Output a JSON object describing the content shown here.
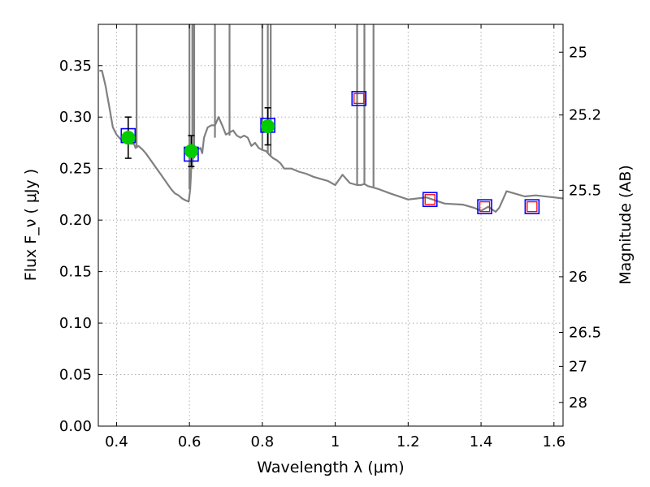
{
  "chart_data": {
    "type": "scatter",
    "xlabel": "Wavelength  λ (μm)",
    "ylabel": "Flux  F_ν  ( μJy )",
    "y2label": "Magnitude (AB)",
    "xlim": [
      0.35,
      1.625
    ],
    "ylim": [
      0.0,
      0.39
    ],
    "grid": true,
    "x_ticks": [
      0.4,
      0.6,
      0.8,
      1.0,
      1.2,
      1.4,
      1.6
    ],
    "x_tick_labels": [
      "0.4",
      "0.6",
      "0.8",
      "1",
      "1.2",
      "1.4",
      "1.6"
    ],
    "y_ticks": [
      0.0,
      0.05,
      0.1,
      0.15,
      0.2,
      0.25,
      0.3,
      0.35
    ],
    "y_tick_labels": [
      "0.00",
      "0.05",
      "0.10",
      "0.15",
      "0.20",
      "0.25",
      "0.30",
      "0.35"
    ],
    "y2_ticks": [
      {
        "label": "25",
        "flux": 0.363
      },
      {
        "label": "25.2",
        "flux": 0.302
      },
      {
        "label": "25.5",
        "flux": 0.229
      },
      {
        "label": "26",
        "flux": 0.145
      },
      {
        "label": "26.5",
        "flux": 0.091
      },
      {
        "label": "27",
        "flux": 0.058
      },
      {
        "label": "28",
        "flux": 0.023
      }
    ],
    "colors": {
      "model": "#808080",
      "observed": "#00cc00",
      "errorbar": "#000000",
      "model_band_box": "#0000ff",
      "fit_band_box": "#ff0000",
      "grid": "#b0b0b0"
    },
    "series": [
      {
        "marker": "line",
        "x": [
          0.353,
          0.36,
          0.37,
          0.375,
          0.38,
          0.385,
          0.39,
          0.4,
          0.41,
          0.42,
          0.43,
          0.44,
          0.448,
          0.452,
          0.46,
          0.47,
          0.48,
          0.49,
          0.5,
          0.51,
          0.52,
          0.53,
          0.54,
          0.55,
          0.56,
          0.57,
          0.58,
          0.59,
          0.598,
          0.602,
          0.605,
          0.61,
          0.62,
          0.63,
          0.635,
          0.64,
          0.65,
          0.66,
          0.67,
          0.68,
          0.69,
          0.7,
          0.71,
          0.72,
          0.73,
          0.74,
          0.75,
          0.76,
          0.77,
          0.78,
          0.79,
          0.8,
          0.81,
          0.82,
          0.83,
          0.84,
          0.85,
          0.86,
          0.87,
          0.88,
          0.9,
          0.92,
          0.94,
          0.96,
          0.98,
          1.0,
          1.02,
          1.04,
          1.06,
          1.07,
          1.08,
          1.09,
          1.1,
          1.12,
          1.15,
          1.2,
          1.25,
          1.3,
          1.35,
          1.38,
          1.4,
          1.42,
          1.44,
          1.45,
          1.47,
          1.5,
          1.52,
          1.55,
          1.6,
          1.625
        ],
        "y": [
          0.345,
          0.345,
          0.33,
          0.32,
          0.31,
          0.3,
          0.29,
          0.283,
          0.279,
          0.276,
          0.275,
          0.274,
          0.274,
          0.27,
          0.272,
          0.269,
          0.265,
          0.26,
          0.255,
          0.25,
          0.245,
          0.24,
          0.235,
          0.23,
          0.226,
          0.224,
          0.221,
          0.219,
          0.218,
          0.23,
          0.25,
          0.26,
          0.268,
          0.27,
          0.265,
          0.28,
          0.29,
          0.292,
          0.292,
          0.3,
          0.292,
          0.283,
          0.285,
          0.287,
          0.282,
          0.28,
          0.282,
          0.28,
          0.272,
          0.275,
          0.27,
          0.268,
          0.267,
          0.263,
          0.26,
          0.258,
          0.255,
          0.25,
          0.25,
          0.25,
          0.247,
          0.245,
          0.242,
          0.24,
          0.238,
          0.234,
          0.244,
          0.236,
          0.234,
          0.234,
          0.235,
          0.233,
          0.232,
          0.23,
          0.226,
          0.22,
          0.222,
          0.216,
          0.215,
          0.212,
          0.209,
          0.213,
          0.208,
          0.212,
          0.228,
          0.225,
          0.223,
          0.224,
          0.222,
          0.221
        ]
      },
      {
        "marker": "spike",
        "x": [
          0.455,
          0.6,
          0.608,
          0.613,
          0.67,
          0.71,
          0.8,
          0.815,
          0.823,
          1.06,
          1.08,
          1.105
        ],
        "y": [
          0.27,
          0.23,
          0.25,
          0.26,
          0.28,
          0.282,
          0.268,
          0.265,
          0.263,
          0.234,
          0.234,
          0.232
        ]
      },
      {
        "marker": "blue-square",
        "x": [
          0.432,
          0.605,
          0.815,
          1.065,
          1.26,
          1.41,
          1.54
        ],
        "y": [
          0.282,
          0.264,
          0.292,
          0.318,
          0.22,
          0.213,
          0.213
        ]
      },
      {
        "marker": "red-square",
        "x": [
          1.065,
          1.26,
          1.41,
          1.54
        ],
        "y": [
          0.318,
          0.22,
          0.213,
          0.213
        ]
      },
      {
        "marker": "green-circle",
        "x": [
          0.432,
          0.605,
          0.815
        ],
        "y": [
          0.28,
          0.267,
          0.291
        ],
        "yerr": [
          0.02,
          0.015,
          0.018
        ]
      }
    ]
  }
}
